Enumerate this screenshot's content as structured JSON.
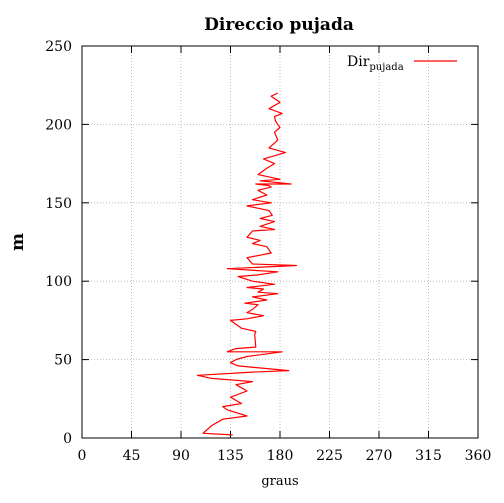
{
  "chart_data": {
    "type": "line",
    "title": "Direccio pujada",
    "xlabel": "graus",
    "ylabel": "m",
    "xlim": [
      0,
      360
    ],
    "ylim": [
      0,
      250
    ],
    "xticks": [
      0,
      45,
      90,
      135,
      180,
      225,
      270,
      315,
      360
    ],
    "yticks": [
      0,
      50,
      100,
      150,
      200,
      250
    ],
    "grid": true,
    "legend_position": "top-right",
    "series": [
      {
        "name": "Dirpujada",
        "name_main": "Dir",
        "name_sub": "pujada",
        "color": "#ff0000",
        "points": [
          [
            137,
            2
          ],
          [
            110,
            3
          ],
          [
            118,
            8
          ],
          [
            128,
            12
          ],
          [
            150,
            14
          ],
          [
            132,
            18
          ],
          [
            128,
            20
          ],
          [
            145,
            22
          ],
          [
            135,
            26
          ],
          [
            150,
            30
          ],
          [
            140,
            34
          ],
          [
            155,
            36
          ],
          [
            118,
            38
          ],
          [
            105,
            40
          ],
          [
            155,
            42
          ],
          [
            188,
            43
          ],
          [
            142,
            46
          ],
          [
            135,
            48
          ],
          [
            140,
            50
          ],
          [
            150,
            52
          ],
          [
            182,
            55
          ],
          [
            132,
            55
          ],
          [
            140,
            57
          ],
          [
            158,
            58
          ],
          [
            157,
            66
          ],
          [
            158,
            68
          ],
          [
            145,
            70
          ],
          [
            135,
            75
          ],
          [
            150,
            76
          ],
          [
            165,
            78
          ],
          [
            150,
            80
          ],
          [
            155,
            82
          ],
          [
            160,
            85
          ],
          [
            148,
            86
          ],
          [
            168,
            88
          ],
          [
            155,
            90
          ],
          [
            178,
            92
          ],
          [
            160,
            93
          ],
          [
            165,
            95
          ],
          [
            150,
            96
          ],
          [
            175,
            98
          ],
          [
            155,
            100
          ],
          [
            142,
            103
          ],
          [
            160,
            104
          ],
          [
            178,
            106
          ],
          [
            132,
            108
          ],
          [
            195,
            110
          ],
          [
            155,
            111
          ],
          [
            150,
            115
          ],
          [
            172,
            118
          ],
          [
            168,
            122
          ],
          [
            155,
            124
          ],
          [
            162,
            126
          ],
          [
            150,
            128
          ],
          [
            155,
            132
          ],
          [
            175,
            133
          ],
          [
            162,
            135
          ],
          [
            175,
            138
          ],
          [
            162,
            140
          ],
          [
            173,
            142
          ],
          [
            170,
            145
          ],
          [
            150,
            148
          ],
          [
            172,
            150
          ],
          [
            155,
            152
          ],
          [
            168,
            155
          ],
          [
            160,
            158
          ],
          [
            172,
            160
          ],
          [
            170,
            161
          ],
          [
            158,
            162
          ],
          [
            190,
            162
          ],
          [
            162,
            164
          ],
          [
            180,
            165
          ],
          [
            160,
            168
          ],
          [
            168,
            172
          ],
          [
            175,
            175
          ],
          [
            165,
            178
          ],
          [
            185,
            182
          ],
          [
            170,
            185
          ],
          [
            178,
            190
          ],
          [
            175,
            195
          ],
          [
            180,
            198
          ],
          [
            176,
            202
          ],
          [
            175,
            205
          ],
          [
            182,
            207
          ],
          [
            170,
            210
          ],
          [
            180,
            214
          ],
          [
            172,
            218
          ],
          [
            178,
            220
          ]
        ]
      }
    ]
  }
}
